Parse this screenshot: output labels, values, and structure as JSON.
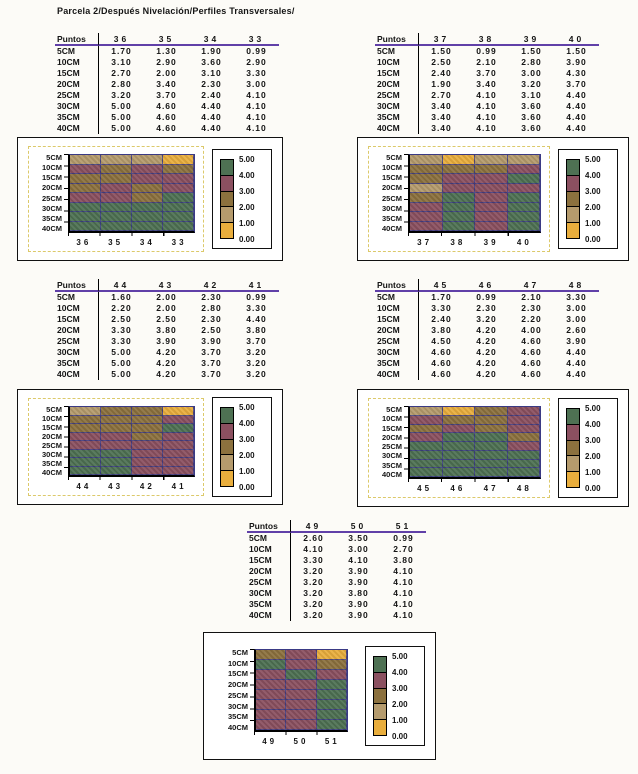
{
  "title": "Parcela 2/Después Nivelación/Perfiles Transversales/",
  "table": {
    "corner_header": "Puntos"
  },
  "legend": {
    "labels": [
      "5.00",
      "4.00",
      "3.00",
      "2.00",
      "1.00",
      "0.00"
    ],
    "position": "right"
  },
  "colors": {
    "bands": [
      "#E9AE3D",
      "#B59B6D",
      "#8C713E",
      "#8B5060",
      "#4E7153"
    ],
    "plot_gridline": "#3A3A85",
    "header_rule": "#6040A8",
    "axis": "#000000",
    "dashed_frame": "#DCC96A",
    "background": "#FCFBF7"
  },
  "chart_data": [
    {
      "type": "heatmap",
      "title": "",
      "x_categories": [
        "36",
        "35",
        "34",
        "33"
      ],
      "y_categories": [
        "5CM",
        "10CM",
        "15CM",
        "20CM",
        "25CM",
        "30CM",
        "35CM",
        "40CM"
      ],
      "values": [
        [
          1.7,
          1.3,
          1.9,
          0.99
        ],
        [
          3.1,
          2.9,
          3.6,
          2.9
        ],
        [
          2.7,
          2.0,
          3.1,
          3.3
        ],
        [
          2.8,
          3.4,
          2.3,
          3.0
        ],
        [
          3.2,
          3.7,
          2.4,
          4.1
        ],
        [
          5.0,
          4.6,
          4.4,
          4.1
        ],
        [
          5.0,
          4.6,
          4.4,
          4.1
        ],
        [
          5.0,
          4.6,
          4.4,
          4.1
        ]
      ],
      "value_range": [
        0,
        5
      ],
      "legend_labels": [
        "5.00",
        "4.00",
        "3.00",
        "2.00",
        "1.00",
        "0.00"
      ],
      "legend_position": "right"
    },
    {
      "type": "heatmap",
      "title": "",
      "x_categories": [
        "37",
        "38",
        "39",
        "40"
      ],
      "y_categories": [
        "5CM",
        "10CM",
        "15CM",
        "20CM",
        "25CM",
        "30CM",
        "35CM",
        "40CM"
      ],
      "values": [
        [
          1.5,
          0.99,
          1.5,
          1.5
        ],
        [
          2.5,
          2.1,
          2.8,
          3.9
        ],
        [
          2.4,
          3.7,
          3.0,
          4.3
        ],
        [
          1.9,
          3.4,
          3.2,
          3.7
        ],
        [
          2.7,
          4.1,
          3.1,
          4.4
        ],
        [
          3.4,
          4.1,
          3.6,
          4.4
        ],
        [
          3.4,
          4.1,
          3.6,
          4.4
        ],
        [
          3.4,
          4.1,
          3.6,
          4.4
        ]
      ],
      "value_range": [
        0,
        5
      ],
      "legend_labels": [
        "5.00",
        "4.00",
        "3.00",
        "2.00",
        "1.00",
        "0.00"
      ],
      "legend_position": "right"
    },
    {
      "type": "heatmap",
      "title": "",
      "x_categories": [
        "44",
        "43",
        "42",
        "41"
      ],
      "y_categories": [
        "5CM",
        "10CM",
        "15CM",
        "20CM",
        "25CM",
        "30CM",
        "35CM",
        "40CM"
      ],
      "values": [
        [
          1.6,
          2.0,
          2.3,
          0.99
        ],
        [
          2.2,
          2.0,
          2.8,
          3.3
        ],
        [
          2.5,
          2.5,
          2.3,
          4.4
        ],
        [
          3.3,
          3.8,
          2.5,
          3.8
        ],
        [
          3.3,
          3.9,
          3.9,
          3.7
        ],
        [
          5.0,
          4.2,
          3.7,
          3.2
        ],
        [
          5.0,
          4.2,
          3.7,
          3.2
        ],
        [
          5.0,
          4.2,
          3.7,
          3.2
        ]
      ],
      "value_range": [
        0,
        5
      ],
      "legend_labels": [
        "5.00",
        "4.00",
        "3.00",
        "2.00",
        "1.00",
        "0.00"
      ],
      "legend_position": "right"
    },
    {
      "type": "heatmap",
      "title": "",
      "x_categories": [
        "45",
        "46",
        "47",
        "48"
      ],
      "y_categories": [
        "5CM",
        "10CM",
        "15CM",
        "20CM",
        "25CM",
        "30CM",
        "35CM",
        "40CM"
      ],
      "values": [
        [
          1.7,
          0.99,
          2.1,
          3.3
        ],
        [
          3.3,
          2.3,
          2.3,
          3.0
        ],
        [
          2.4,
          3.2,
          2.2,
          3.0
        ],
        [
          3.8,
          4.2,
          4.0,
          2.6
        ],
        [
          4.5,
          4.2,
          4.6,
          3.9
        ],
        [
          4.6,
          4.2,
          4.6,
          4.4
        ],
        [
          4.6,
          4.2,
          4.6,
          4.4
        ],
        [
          4.6,
          4.2,
          4.6,
          4.4
        ]
      ],
      "value_range": [
        0,
        5
      ],
      "legend_labels": [
        "5.00",
        "4.00",
        "3.00",
        "2.00",
        "1.00",
        "0.00"
      ],
      "legend_position": "right"
    },
    {
      "type": "heatmap",
      "title": "",
      "x_categories": [
        "49",
        "50",
        "51"
      ],
      "y_categories": [
        "5CM",
        "10CM",
        "15CM",
        "20CM",
        "25CM",
        "30CM",
        "35CM",
        "40CM"
      ],
      "values": [
        [
          2.6,
          3.5,
          0.99
        ],
        [
          4.1,
          3.0,
          2.7
        ],
        [
          3.3,
          4.1,
          3.8
        ],
        [
          3.2,
          3.9,
          4.1
        ],
        [
          3.2,
          3.9,
          4.1
        ],
        [
          3.2,
          3.8,
          4.1
        ],
        [
          3.2,
          3.9,
          4.1
        ],
        [
          3.2,
          3.9,
          4.1
        ]
      ],
      "value_range": [
        0,
        5
      ],
      "legend_labels": [
        "5.00",
        "4.00",
        "3.00",
        "2.00",
        "1.00",
        "0.00"
      ],
      "legend_position": "right"
    }
  ]
}
